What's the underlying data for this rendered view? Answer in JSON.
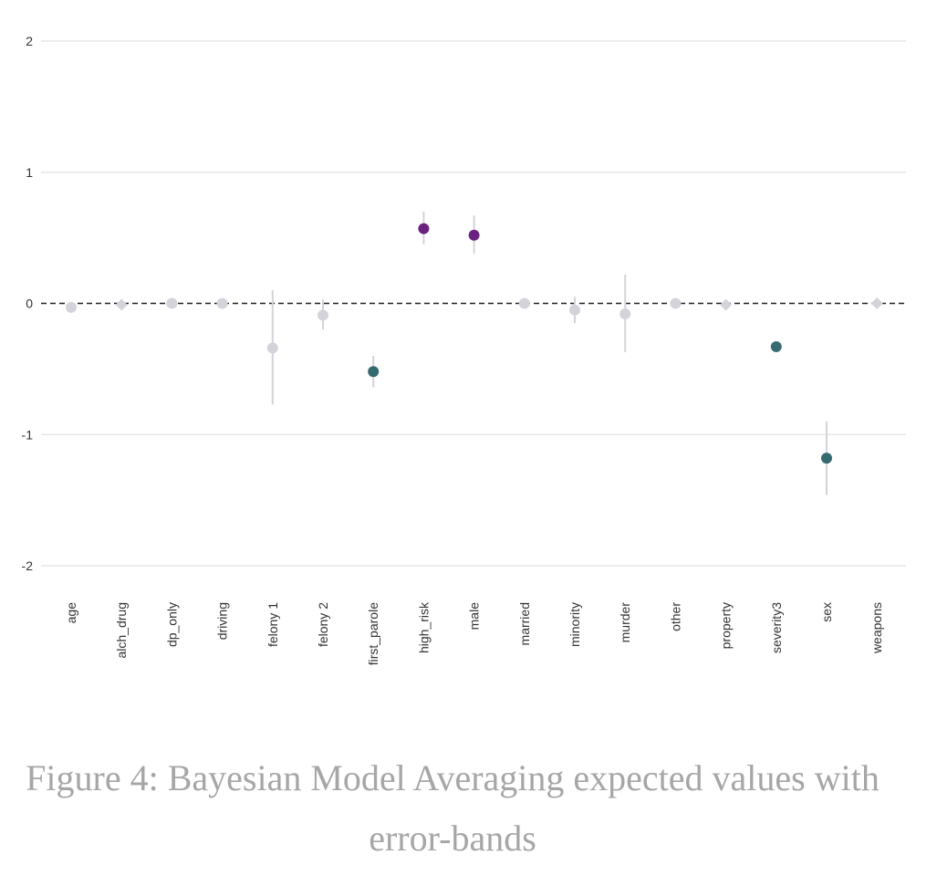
{
  "chart_data": {
    "type": "scatter",
    "categories": [
      "age",
      "alch_drug",
      "dp_only",
      "driving",
      "felony 1",
      "felony 2",
      "first_parole",
      "high_risk",
      "male",
      "married",
      "minority",
      "murder",
      "other",
      "property",
      "severity3",
      "sex",
      "weapons"
    ],
    "values": [
      -0.03,
      -0.01,
      0.0,
      0.0,
      -0.34,
      -0.09,
      -0.52,
      0.57,
      0.52,
      0.0,
      -0.05,
      -0.08,
      0.0,
      -0.01,
      -0.33,
      -1.18,
      0.0
    ],
    "lower": [
      -0.03,
      -0.01,
      0.0,
      0.0,
      -0.77,
      -0.2,
      -0.64,
      0.45,
      0.38,
      0.0,
      -0.15,
      -0.37,
      0.0,
      -0.01,
      -0.33,
      -1.46,
      0.0
    ],
    "upper": [
      -0.03,
      -0.01,
      0.0,
      0.0,
      0.1,
      0.03,
      -0.4,
      0.7,
      0.67,
      0.0,
      0.05,
      0.22,
      0.0,
      -0.01,
      -0.33,
      -0.9,
      0.0
    ],
    "point_groups": [
      "neutral",
      "neutral",
      "neutral",
      "neutral",
      "neutral",
      "neutral",
      "negative",
      "positive",
      "positive",
      "neutral",
      "neutral",
      "neutral",
      "neutral",
      "neutral",
      "negative",
      "negative",
      "neutral"
    ],
    "shapes": [
      "circle",
      "diamond",
      "circle",
      "circle",
      "circle",
      "circle",
      "circle",
      "circle",
      "circle",
      "circle",
      "circle",
      "circle",
      "circle",
      "diamond",
      "circle",
      "circle",
      "diamond"
    ],
    "group_colors": {
      "neutral": "#d4d3da",
      "negative": "#356a70",
      "positive": "#6a2180"
    },
    "yticks": [
      -2,
      -1,
      0,
      1,
      2
    ],
    "ylim": [
      -2,
      2
    ],
    "reference_line": 0,
    "grid": true,
    "title": "",
    "xlabel": "",
    "ylabel": ""
  },
  "caption": "Figure 4: Bayesian Model Averaging expected values with error-bands"
}
